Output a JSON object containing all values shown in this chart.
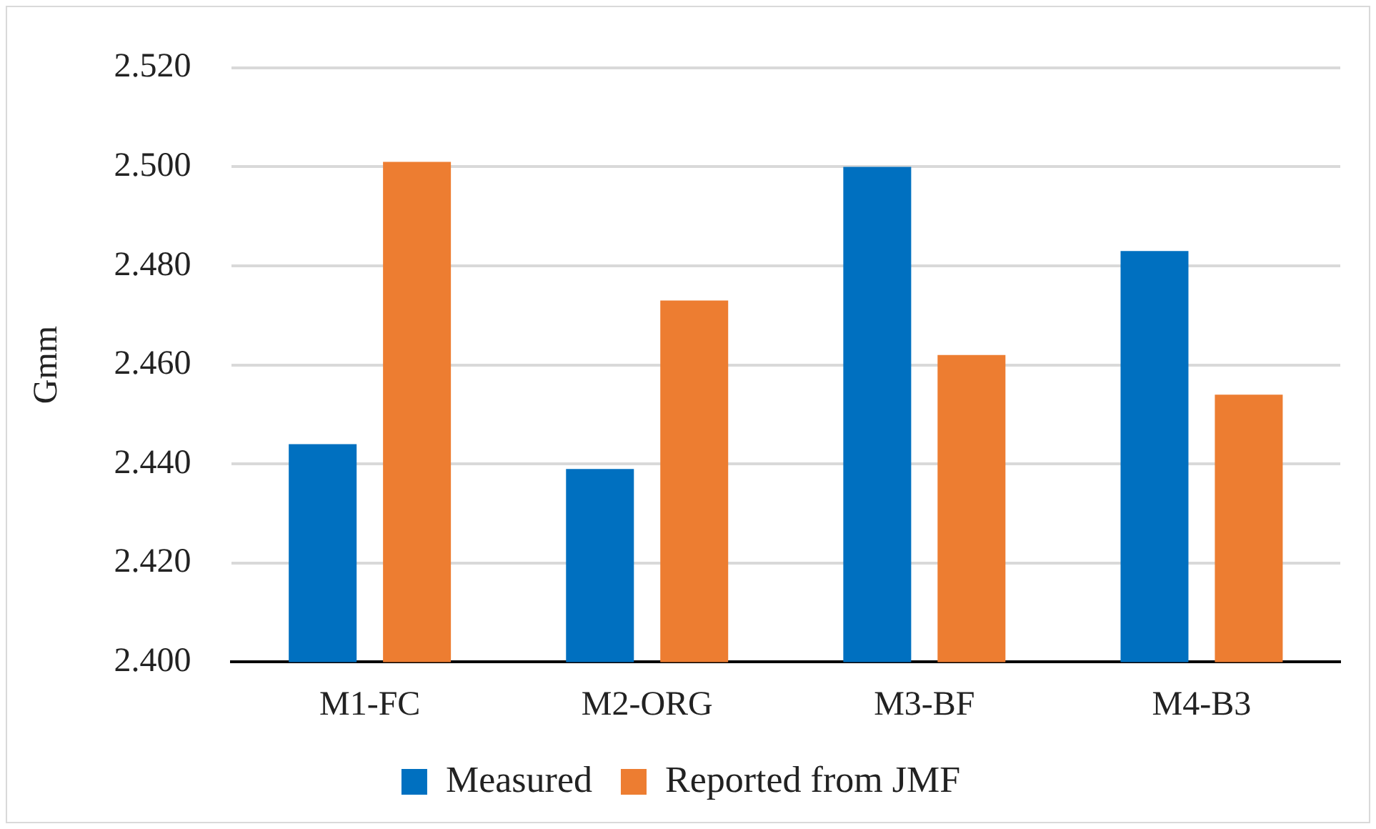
{
  "chart_data": {
    "type": "bar",
    "ylabel": "Gmm",
    "categories": [
      "M1-FC",
      "M2-ORG",
      "M3-BF",
      "M4-B3"
    ],
    "series": [
      {
        "name": "Measured",
        "color": "#0070c0",
        "values": [
          2.444,
          2.439,
          2.5,
          2.483
        ]
      },
      {
        "name": "Reported from JMF",
        "color": "#ed7d31",
        "values": [
          2.501,
          2.473,
          2.462,
          2.454
        ]
      }
    ],
    "ylim": [
      2.4,
      2.52
    ],
    "yticks": [
      {
        "value": 2.4,
        "label": "2.400"
      },
      {
        "value": 2.42,
        "label": "2.420"
      },
      {
        "value": 2.44,
        "label": "2.440"
      },
      {
        "value": 2.46,
        "label": "2.460"
      },
      {
        "value": 2.48,
        "label": "2.480"
      },
      {
        "value": 2.5,
        "label": "2.500"
      },
      {
        "value": 2.52,
        "label": "2.520"
      }
    ],
    "grid": "y",
    "legend": "bottom"
  }
}
